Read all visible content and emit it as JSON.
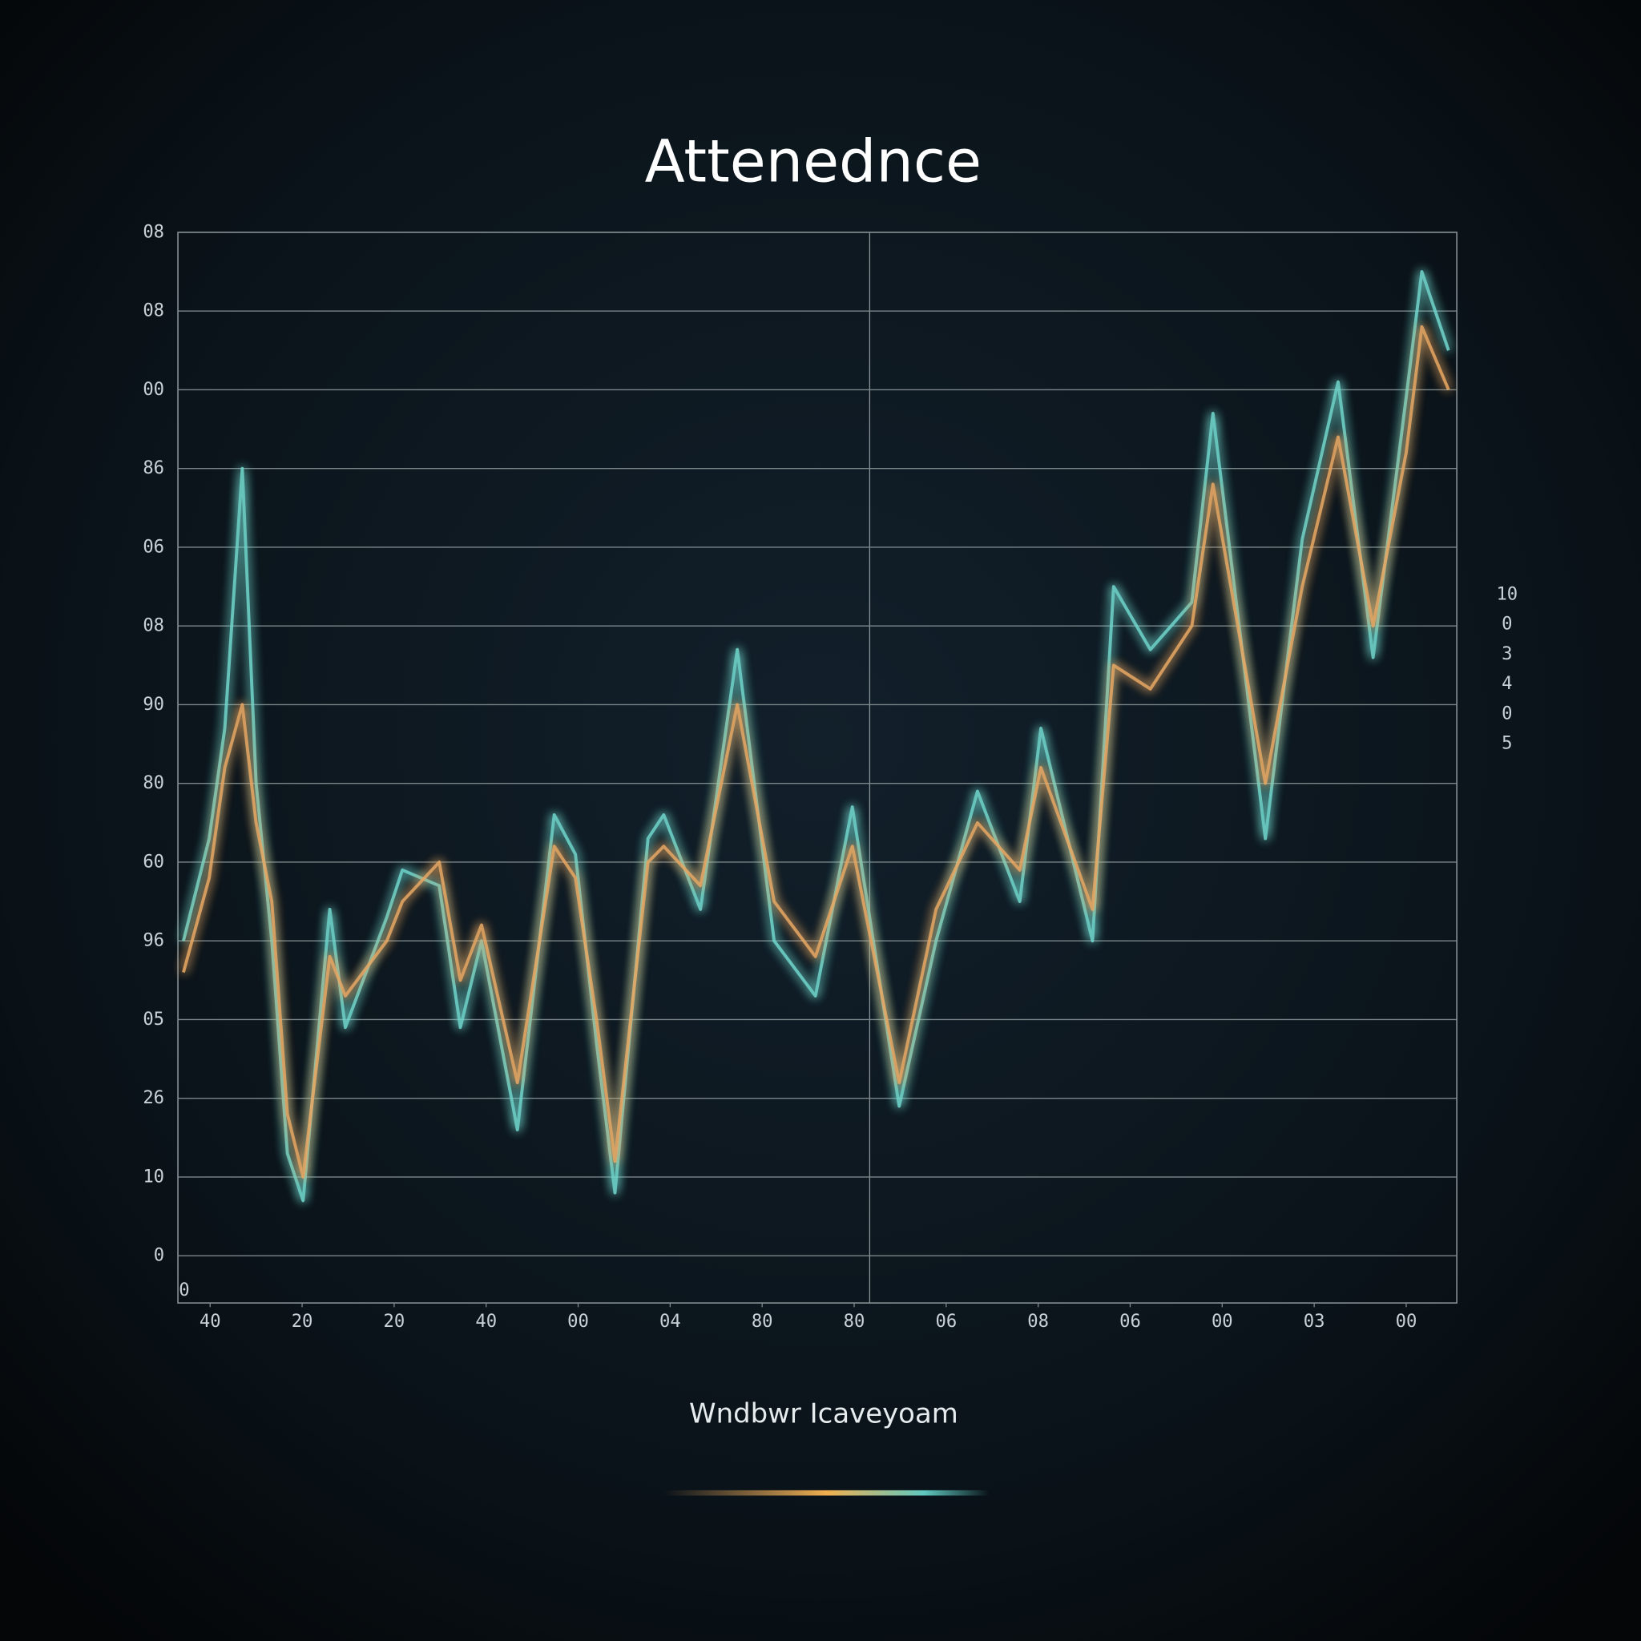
{
  "chart_data": {
    "type": "line",
    "title": "Attenednce",
    "x_label": "Wndbwr Icaveyoam",
    "origin_label": "0",
    "side_labels": [
      "10",
      "0",
      "3",
      "4",
      "0",
      "5"
    ],
    "x": [
      -0.29,
      -0.01,
      0.16,
      0.35,
      0.5,
      0.67,
      0.84,
      1.01,
      1.3,
      1.47,
      1.92,
      2.09,
      2.49,
      2.72,
      2.95,
      3.34,
      3.74,
      3.97,
      4.2,
      4.4,
      4.76,
      4.93,
      5.33,
      5.73,
      6.13,
      6.58,
      6.98,
      7.49,
      7.89,
      8.34,
      8.8,
      9.03,
      9.59,
      9.82,
      10.22,
      10.67,
      10.9,
      11.47,
      11.87,
      12.26,
      12.64,
      13.0,
      13.17,
      13.46
    ],
    "series": [
      {
        "color": "#6fd6cc",
        "values": [
          40,
          53,
          67,
          100,
          60,
          40,
          13,
          7,
          44,
          29,
          43,
          49,
          47,
          29,
          40,
          16,
          56,
          51,
          27,
          8,
          53,
          56,
          44,
          77,
          40,
          33,
          57,
          19,
          40,
          59,
          45,
          67,
          40,
          85,
          77,
          83,
          107,
          53,
          91,
          111,
          76,
          109,
          125,
          115
        ]
      },
      {
        "color": "#e8a864",
        "values": [
          36,
          48,
          62,
          70,
          55,
          45,
          18,
          10,
          38,
          33,
          40,
          45,
          50,
          35,
          42,
          22,
          52,
          48,
          30,
          12,
          50,
          52,
          47,
          70,
          45,
          38,
          52,
          22,
          44,
          55,
          49,
          62,
          44,
          75,
          72,
          80,
          98,
          60,
          85,
          104,
          80,
          102,
          118,
          110
        ]
      }
    ],
    "xlim": [
      -0.35,
      13.55
    ],
    "xticks": [
      {
        "value": 0,
        "label": "40"
      },
      {
        "value": 1,
        "label": "20"
      },
      {
        "value": 2,
        "label": "20"
      },
      {
        "value": 3,
        "label": "40"
      },
      {
        "value": 4,
        "label": "00"
      },
      {
        "value": 5,
        "label": "04"
      },
      {
        "value": 6,
        "label": "80"
      },
      {
        "value": 7,
        "label": "80"
      },
      {
        "value": 8,
        "label": "06"
      },
      {
        "value": 9,
        "label": "08"
      },
      {
        "value": 10,
        "label": "06"
      },
      {
        "value": 11,
        "label": "00"
      },
      {
        "value": 12,
        "label": "03"
      },
      {
        "value": 13,
        "label": "00"
      }
    ],
    "ylim": [
      -6,
      130
    ],
    "yticks": [
      0,
      10,
      {
        "value": 20,
        "label": "26"
      },
      {
        "value": 30,
        "label": "05"
      },
      {
        "value": 40,
        "label": "96"
      },
      {
        "value": 50,
        "label": "60"
      },
      {
        "value": 60,
        "label": "80"
      },
      {
        "value": 70,
        "label": "90"
      },
      {
        "value": 80,
        "label": "08"
      },
      {
        "value": 90,
        "label": "06"
      },
      {
        "value": 100,
        "label": "86"
      },
      {
        "value": 110,
        "label": "00"
      },
      {
        "value": 120,
        "label": "08"
      },
      {
        "value": 130,
        "label": "08"
      }
    ],
    "grid": true
  }
}
